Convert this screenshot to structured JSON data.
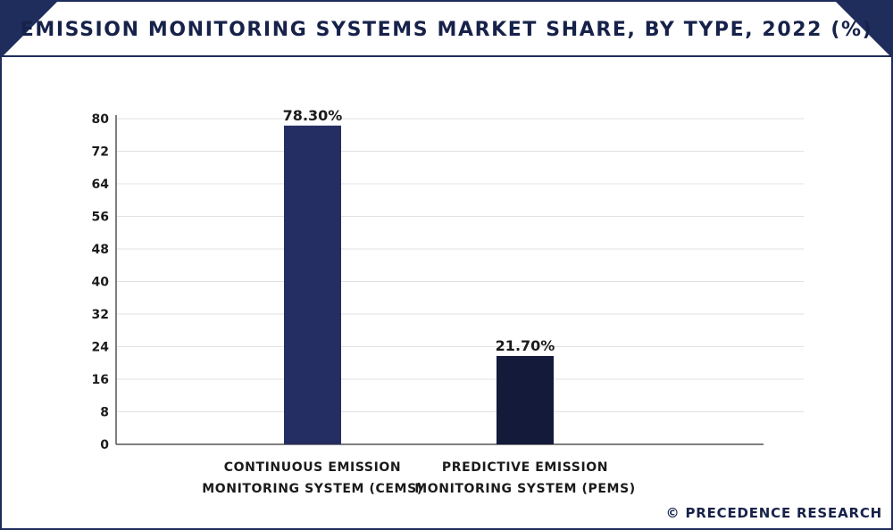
{
  "title": "EMISSION MONITORING SYSTEMS MARKET SHARE, BY TYPE, 2022 (%)",
  "credit": "© PRECEDENCE RESEARCH",
  "colors": {
    "frame": "#1f2d5c",
    "banner_dark": "#1f2d5c",
    "banner_light": "#e6e8ef",
    "bar_cems": "#252e63",
    "bar_pems": "#131a3a",
    "grid": "#e2e2e2",
    "axis": "#555555"
  },
  "chart_data": {
    "type": "bar",
    "title": "EMISSION MONITORING SYSTEMS MARKET SHARE, BY TYPE, 2022 (%)",
    "categories": [
      [
        "CONTINUOUS EMISSION",
        "MONITORING SYSTEM (CEMS)"
      ],
      [
        "PREDICTIVE EMISSION",
        "MONITORING SYSTEM (PEMS)"
      ]
    ],
    "values": [
      78.3,
      21.7
    ],
    "data_labels": [
      "78.30%",
      "21.70%"
    ],
    "yticks": [
      0,
      8,
      16,
      24,
      32,
      40,
      48,
      56,
      64,
      72,
      80
    ],
    "ylim": [
      0,
      80
    ],
    "grid": true,
    "legend": false
  }
}
